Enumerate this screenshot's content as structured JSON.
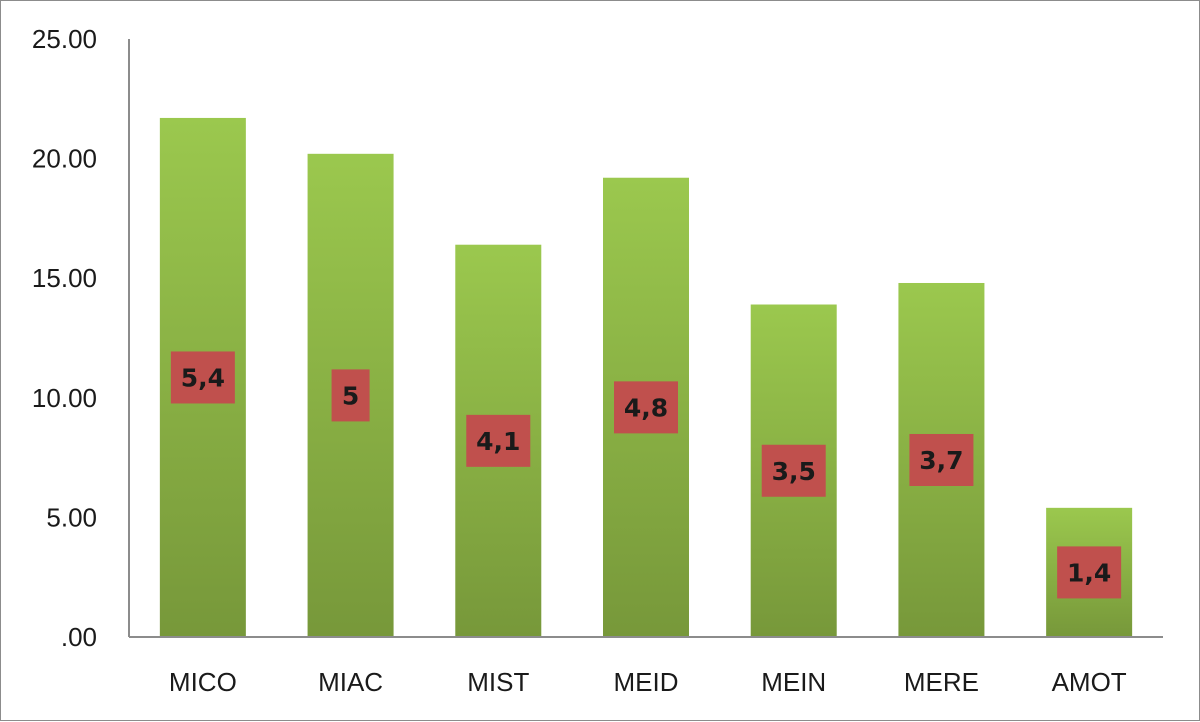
{
  "chart_data": {
    "type": "bar",
    "categories": [
      "MICO",
      "MIAC",
      "MIST",
      "MEID",
      "MEIN",
      "MERE",
      "AMOT"
    ],
    "values": [
      21.7,
      20.2,
      16.4,
      19.2,
      13.9,
      14.8,
      5.4
    ],
    "data_labels": [
      "5,4",
      "5",
      "4,1",
      "4,8",
      "3,5",
      "3,7",
      "1,4"
    ],
    "y_ticks": [
      ".00",
      "5.00",
      "10.00",
      "15.00",
      "20.00",
      "25.00"
    ],
    "ylim": [
      0,
      25
    ],
    "grid": false,
    "legend": "none",
    "title": "",
    "xlabel": "",
    "ylabel": "",
    "colors": {
      "bar_top": "#9bc84e",
      "bar_bottom": "#77983a",
      "label_box": "#c0504d",
      "axis": "#8c8c8c"
    }
  }
}
